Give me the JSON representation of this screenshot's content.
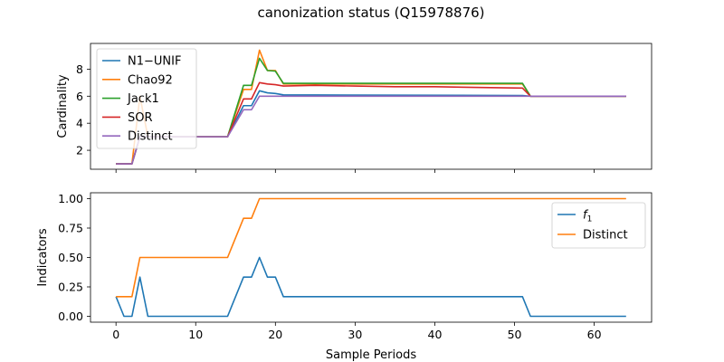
{
  "figure": {
    "title": "canonization status (Q15978876)",
    "xlabel": "Sample Periods"
  },
  "colors": {
    "blue": "#1f77b4",
    "orange": "#ff7f0e",
    "green": "#2ca02c",
    "red": "#d62728",
    "purple": "#9467bd"
  },
  "chart_data": [
    {
      "type": "line",
      "ylabel": "Cardinality",
      "xlim": [
        -3.2,
        67.2
      ],
      "ylim": [
        0.6,
        9.9
      ],
      "xticks": [
        0,
        10,
        20,
        30,
        40,
        50,
        60
      ],
      "yticks": [
        2,
        4,
        6,
        8
      ],
      "show_x_tick_labels": false,
      "legend": "upper-left",
      "series": [
        {
          "name": "N1−UNIF",
          "color": "#1f77b4",
          "points": [
            [
              0,
              1
            ],
            [
              2,
              1
            ],
            [
              3,
              3
            ],
            [
              14,
              3
            ],
            [
              16,
              5.3
            ],
            [
              17,
              5.3
            ],
            [
              18,
              6.4
            ],
            [
              19,
              6.25
            ],
            [
              20,
              6.2
            ],
            [
              21,
              6.1
            ],
            [
              51,
              6.05
            ],
            [
              52,
              6.0
            ],
            [
              64,
              6.0
            ]
          ]
        },
        {
          "name": "Chao92",
          "color": "#ff7f0e",
          "points": [
            [
              0,
              1
            ],
            [
              2,
              1
            ],
            [
              3,
              6.0
            ],
            [
              4,
              3
            ],
            [
              14,
              3
            ],
            [
              16,
              6.5
            ],
            [
              17,
              6.5
            ],
            [
              18,
              9.4
            ],
            [
              19,
              7.9
            ],
            [
              20,
              7.9
            ],
            [
              21,
              6.9
            ],
            [
              51,
              6.9
            ],
            [
              52,
              6.0
            ],
            [
              64,
              6.0
            ]
          ]
        },
        {
          "name": "Jack1",
          "color": "#2ca02c",
          "points": [
            [
              0,
              1
            ],
            [
              2,
              1
            ],
            [
              3,
              3
            ],
            [
              14,
              3
            ],
            [
              16,
              6.8
            ],
            [
              17,
              6.8
            ],
            [
              18,
              8.8
            ],
            [
              19,
              7.9
            ],
            [
              20,
              7.85
            ],
            [
              21,
              6.95
            ],
            [
              51,
              6.95
            ],
            [
              52,
              6.0
            ],
            [
              64,
              6.0
            ]
          ]
        },
        {
          "name": "SOR",
          "color": "#d62728",
          "points": [
            [
              0,
              1
            ],
            [
              2,
              1
            ],
            [
              3,
              3
            ],
            [
              14,
              3
            ],
            [
              16,
              5.8
            ],
            [
              17,
              5.8
            ],
            [
              18,
              7.0
            ],
            [
              19,
              6.9
            ],
            [
              20,
              6.85
            ],
            [
              21,
              6.75
            ],
            [
              25,
              6.8
            ],
            [
              30,
              6.75
            ],
            [
              35,
              6.7
            ],
            [
              40,
              6.7
            ],
            [
              45,
              6.65
            ],
            [
              51,
              6.6
            ],
            [
              52,
              6.0
            ],
            [
              64,
              6.0
            ]
          ]
        },
        {
          "name": "Distinct",
          "color": "#9467bd",
          "points": [
            [
              0,
              1
            ],
            [
              2,
              1
            ],
            [
              3,
              3
            ],
            [
              14,
              3
            ],
            [
              16,
              5.0
            ],
            [
              17,
              5.0
            ],
            [
              18,
              6.0
            ],
            [
              64,
              6.0
            ]
          ]
        }
      ]
    },
    {
      "type": "line",
      "ylabel": "Indicators",
      "xlim": [
        -3.2,
        67.2
      ],
      "ylim": [
        -0.05,
        1.05
      ],
      "xticks": [
        0,
        10,
        20,
        30,
        40,
        50,
        60
      ],
      "yticks": [
        "0.00",
        "0.25",
        "0.50",
        "0.75",
        "1.00"
      ],
      "show_x_tick_labels": true,
      "legend": "upper-right",
      "series": [
        {
          "name": "f",
          "name_subscript": "1",
          "color": "#1f77b4",
          "points": [
            [
              0,
              0.1667
            ],
            [
              1,
              0
            ],
            [
              2,
              0
            ],
            [
              3,
              0.3333
            ],
            [
              4,
              0
            ],
            [
              14,
              0
            ],
            [
              16,
              0.3333
            ],
            [
              17,
              0.3333
            ],
            [
              18,
              0.5
            ],
            [
              19,
              0.3333
            ],
            [
              20,
              0.3333
            ],
            [
              21,
              0.1667
            ],
            [
              51,
              0.1667
            ],
            [
              52,
              0
            ],
            [
              64,
              0
            ]
          ]
        },
        {
          "name": "Distinct",
          "color": "#ff7f0e",
          "points": [
            [
              0,
              0.1667
            ],
            [
              2,
              0.1667
            ],
            [
              3,
              0.5
            ],
            [
              14,
              0.5
            ],
            [
              16,
              0.8333
            ],
            [
              17,
              0.8333
            ],
            [
              18,
              1.0
            ],
            [
              64,
              1.0
            ]
          ]
        }
      ]
    }
  ]
}
